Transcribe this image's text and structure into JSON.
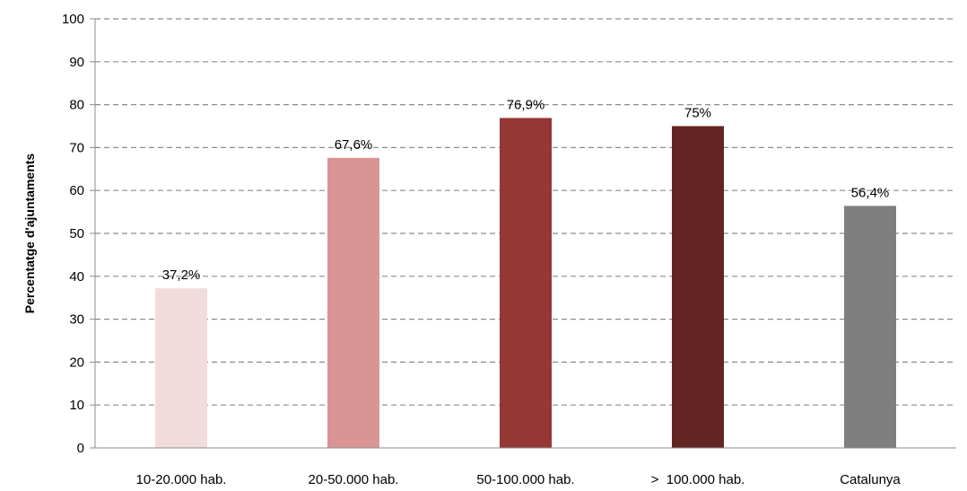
{
  "chart_data": {
    "type": "bar",
    "title": "",
    "xlabel": "",
    "ylabel": "Percentatge d'ajuntaments",
    "ylim": [
      0,
      100
    ],
    "yticks": [
      0,
      10,
      20,
      30,
      40,
      50,
      60,
      70,
      80,
      90,
      100
    ],
    "grid": true,
    "legend": "none",
    "categories": [
      "10-20.000 hab.",
      "20-50.000 hab.",
      "50-100.000 hab.",
      ">  100.000 hab.",
      "Catalunya"
    ],
    "values": [
      37.2,
      67.6,
      76.9,
      75,
      56.4
    ],
    "data_labels": [
      "37,2%",
      "67,6%",
      "76,9%",
      "75%",
      "56,4%"
    ],
    "colors": [
      "#f2dcdb",
      "#d99594",
      "#953735",
      "#632523",
      "#7f7f7f"
    ],
    "grid_color": "#8c8c8c",
    "axis_color": "#8c8c8c"
  }
}
